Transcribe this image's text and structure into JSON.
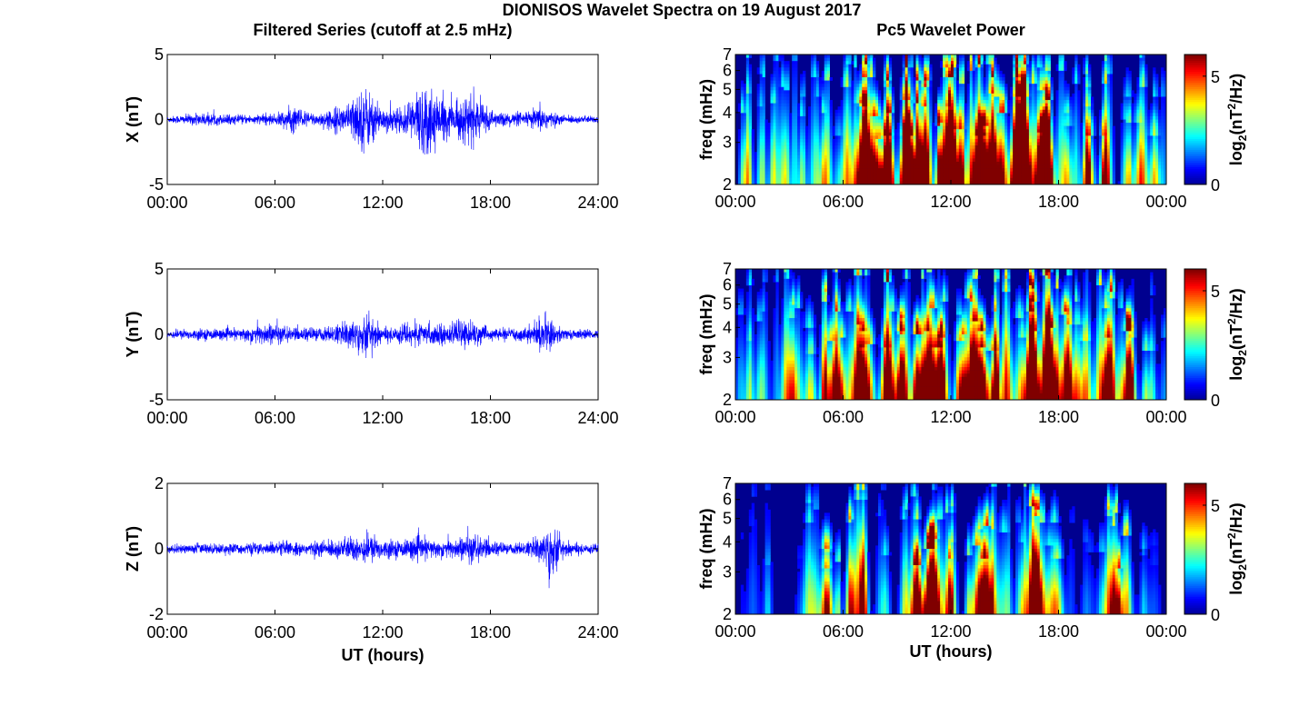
{
  "figure": {
    "title": "DIONISOS Wavelet Spectra on 19 August 2017",
    "left_title": "Filtered Series (cutoff at 2.5 mHz)",
    "right_title": "Pc5 Wavelet Power"
  },
  "colors": {
    "trace": "#0000ff",
    "colormap": [
      "#00008f",
      "#0000ff",
      "#0080ff",
      "#00ffff",
      "#80ff80",
      "#ffff00",
      "#ff8000",
      "#ff0000",
      "#800000"
    ]
  },
  "chart_data": [
    {
      "type": "line",
      "id": "x-series",
      "ylabel": "X (nT)",
      "xlabel": "",
      "x_range_hours": [
        0,
        24
      ],
      "xticklabels": [
        "00:00",
        "06:00",
        "12:00",
        "18:00",
        "24:00"
      ],
      "ylim": [
        -5,
        5
      ],
      "yticklabels": [
        "5",
        "0",
        "-5"
      ],
      "series": [
        {
          "envelope_hours": [
            0,
            2,
            4,
            6,
            7,
            8,
            9,
            10,
            11,
            11.5,
            12,
            13,
            14,
            14.7,
            15,
            16,
            17,
            18,
            19,
            20,
            21,
            21.5,
            22,
            24
          ],
          "envelope_nT": [
            0.3,
            0.6,
            0.4,
            0.5,
            1.3,
            0.6,
            0.8,
            1.5,
            3.2,
            2.0,
            1.2,
            1.0,
            3.0,
            3.4,
            2.0,
            1.6,
            2.4,
            0.8,
            0.6,
            0.7,
            1.3,
            0.6,
            0.4,
            0.3
          ]
        }
      ]
    },
    {
      "type": "line",
      "id": "y-series",
      "ylabel": "Y (nT)",
      "xlabel": "",
      "x_range_hours": [
        0,
        24
      ],
      "xticklabels": [
        "00:00",
        "06:00",
        "12:00",
        "18:00",
        "24:00"
      ],
      "ylim": [
        -5,
        5
      ],
      "yticklabels": [
        "5",
        "0",
        "-5"
      ],
      "series": [
        {
          "envelope_hours": [
            0,
            2,
            4,
            5.5,
            7,
            9,
            10,
            11,
            12,
            13,
            14,
            15,
            16,
            17,
            18,
            20,
            21,
            22,
            24
          ],
          "envelope_nT": [
            0.4,
            0.5,
            0.5,
            1.1,
            0.6,
            0.7,
            1.2,
            2.1,
            0.7,
            0.9,
            1.0,
            1.0,
            0.9,
            1.3,
            0.5,
            0.6,
            1.8,
            0.5,
            0.4
          ]
        }
      ]
    },
    {
      "type": "line",
      "id": "z-series",
      "ylabel": "Z (nT)",
      "xlabel": "UT (hours)",
      "x_range_hours": [
        0,
        24
      ],
      "xticklabels": [
        "00:00",
        "06:00",
        "12:00",
        "18:00",
        "24:00"
      ],
      "ylim": [
        -2,
        2
      ],
      "yticklabels": [
        "2",
        "0",
        "-2"
      ],
      "series": [
        {
          "envelope_hours": [
            0,
            2,
            4,
            6,
            8,
            10,
            11,
            12,
            13,
            14,
            15,
            16,
            17,
            18,
            19,
            20,
            21,
            21.3,
            22,
            24
          ],
          "envelope_nT": [
            0.15,
            0.2,
            0.2,
            0.25,
            0.25,
            0.4,
            0.6,
            0.35,
            0.3,
            0.45,
            0.3,
            0.4,
            0.55,
            0.3,
            0.2,
            0.25,
            0.6,
            1.4,
            0.3,
            0.15
          ]
        }
      ]
    },
    {
      "type": "heatmap",
      "id": "x-wavelet",
      "ylabel": "freq (mHz)",
      "xlabel": "",
      "x_range_hours": [
        0,
        24
      ],
      "xticklabels": [
        "00:00",
        "06:00",
        "12:00",
        "18:00",
        "00:00"
      ],
      "ylim_mHz": [
        2,
        7
      ],
      "yscale": "log",
      "yticklabels": [
        "7",
        "6",
        "5",
        "4",
        "3",
        "2"
      ],
      "colorbar_label": "log2(nT^2/Hz)",
      "colorbar_range": [
        0,
        6
      ],
      "colorbar_ticklabels": [
        "5",
        "0"
      ],
      "activity_level": [
        0.45,
        0.35,
        0.55,
        0.4,
        0.35,
        0.45,
        0.55,
        0.85,
        0.9,
        0.95,
        1.0,
        1.0,
        0.9,
        1.0,
        0.95,
        0.95,
        1.0,
        0.95,
        0.5,
        0.55,
        0.65,
        0.45,
        0.45,
        0.4
      ]
    },
    {
      "type": "heatmap",
      "id": "y-wavelet",
      "ylabel": "freq (mHz)",
      "xlabel": "",
      "x_range_hours": [
        0,
        24
      ],
      "xticklabels": [
        "00:00",
        "06:00",
        "12:00",
        "18:00",
        "00:00"
      ],
      "ylim_mHz": [
        2,
        7
      ],
      "yscale": "log",
      "yticklabels": [
        "7",
        "6",
        "5",
        "4",
        "3",
        "2"
      ],
      "colorbar_label": "log2(nT^2/Hz)",
      "colorbar_range": [
        0,
        6
      ],
      "colorbar_ticklabels": [
        "5",
        "0"
      ],
      "activity_level": [
        0.35,
        0.3,
        0.35,
        0.4,
        0.55,
        0.75,
        0.65,
        0.55,
        0.65,
        0.7,
        0.95,
        0.85,
        0.65,
        0.85,
        0.75,
        0.6,
        0.9,
        0.9,
        0.6,
        0.5,
        0.85,
        0.8,
        0.4,
        0.35
      ]
    },
    {
      "type": "heatmap",
      "id": "z-wavelet",
      "ylabel": "freq (mHz)",
      "xlabel": "UT (hours)",
      "x_range_hours": [
        0,
        24
      ],
      "xticklabels": [
        "00:00",
        "06:00",
        "12:00",
        "18:00",
        "00:00"
      ],
      "ylim_mHz": [
        2,
        7
      ],
      "yscale": "log",
      "yticklabels": [
        "7",
        "6",
        "5",
        "4",
        "3",
        "2"
      ],
      "colorbar_label": "log2(nT^2/Hz)",
      "colorbar_range": [
        0,
        6
      ],
      "colorbar_ticklabels": [
        "5",
        "0"
      ],
      "activity_level": [
        0.05,
        0.2,
        0.05,
        0.05,
        0.3,
        0.5,
        0.55,
        0.45,
        0.25,
        0.4,
        0.9,
        0.5,
        0.3,
        0.85,
        0.4,
        0.4,
        0.85,
        0.55,
        0.1,
        0.15,
        0.45,
        0.75,
        0.15,
        0.1
      ]
    }
  ]
}
